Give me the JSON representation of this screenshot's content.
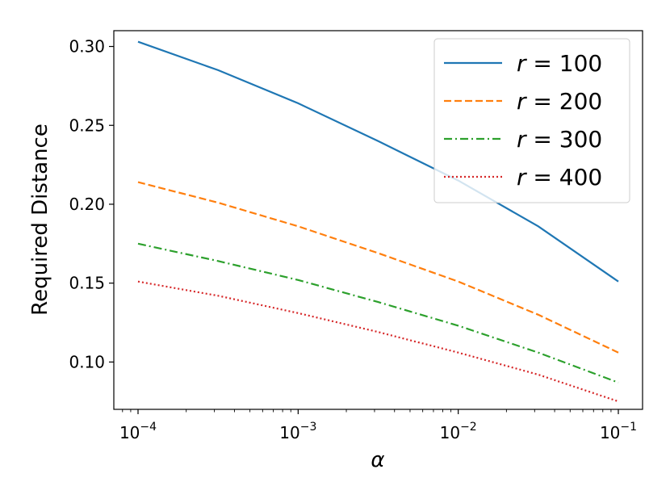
{
  "chart_data": {
    "type": "line",
    "xlabel": "α",
    "ylabel": "Required Distance",
    "x_scale": "log",
    "xlim": [
      0.0001,
      0.1
    ],
    "ylim": [
      0.07,
      0.31
    ],
    "x_ticks": [
      {
        "value": 0.0001,
        "base": "10",
        "exp": "−4"
      },
      {
        "value": 0.001,
        "base": "10",
        "exp": "−3"
      },
      {
        "value": 0.01,
        "base": "10",
        "exp": "−2"
      },
      {
        "value": 0.1,
        "base": "10",
        "exp": "−1"
      }
    ],
    "y_ticks": [
      {
        "value": 0.1,
        "label": "0.10"
      },
      {
        "value": 0.15,
        "label": "0.15"
      },
      {
        "value": 0.2,
        "label": "0.20"
      },
      {
        "value": 0.25,
        "label": "0.25"
      },
      {
        "value": 0.3,
        "label": "0.30"
      }
    ],
    "x": [
      0.0001,
      0.0003162,
      0.001,
      0.003162,
      0.01,
      0.03162,
      0.1
    ],
    "series": [
      {
        "name": "r = 100",
        "var": "r",
        "value": "100",
        "color": "#1f77b4",
        "style": "solid",
        "values": [
          0.303,
          0.285,
          0.264,
          0.24,
          0.215,
          0.186,
          0.151
        ]
      },
      {
        "name": "r = 200",
        "var": "r",
        "value": "200",
        "color": "#ff7f0e",
        "style": "dashed",
        "values": [
          0.214,
          0.201,
          0.186,
          0.169,
          0.151,
          0.13,
          0.106
        ]
      },
      {
        "name": "r = 300",
        "var": "r",
        "value": "300",
        "color": "#2ca02c",
        "style": "dashdot",
        "values": [
          0.175,
          0.164,
          0.152,
          0.138,
          0.123,
          0.106,
          0.087
        ]
      },
      {
        "name": "r = 400",
        "var": "r",
        "value": "400",
        "color": "#d62728",
        "style": "dotted",
        "values": [
          0.151,
          0.142,
          0.131,
          0.119,
          0.106,
          0.092,
          0.075
        ]
      }
    ],
    "legend": {
      "position": "top-right"
    },
    "grid": false
  }
}
